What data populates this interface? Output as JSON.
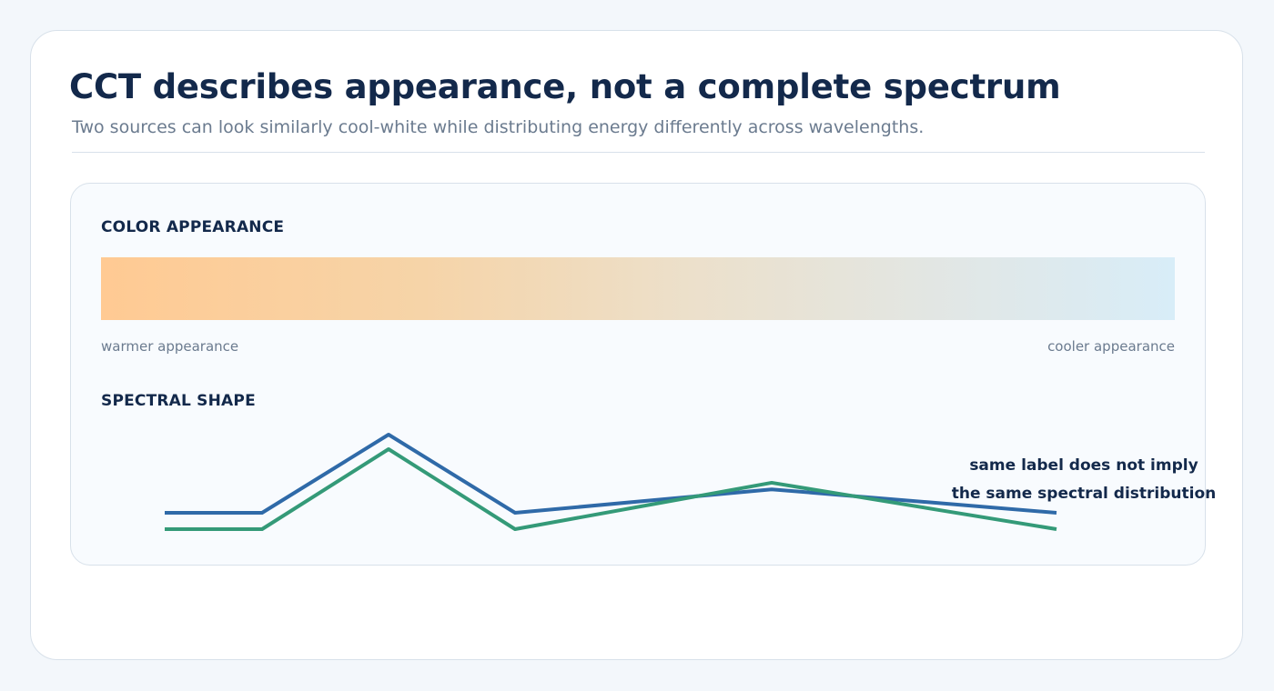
{
  "header": {
    "title": "CCT describes appearance, not a complete spectrum",
    "subtitle": "Two sources can look similarly cool-white while distributing energy differently across wavelengths."
  },
  "appearance": {
    "label": "COLOR APPEARANCE",
    "left_label": "warmer appearance",
    "right_label": "cooler appearance",
    "gradient_colors": [
      "#ffca93",
      "#f6d4a8",
      "#ece0cb",
      "#e1e7e6",
      "#d8edf8"
    ]
  },
  "spectrum": {
    "label": "SPECTRAL SHAPE",
    "annotation_line1": "same label does not imply",
    "annotation_line2": "the same spectral distribution",
    "series": [
      {
        "key": "blue",
        "color": "#2f6aa8",
        "values": [
          0.0,
          0.0,
          1.0,
          0.0,
          0.3,
          0.0
        ]
      },
      {
        "key": "green",
        "color": "#349a78",
        "values": [
          0.0,
          0.0,
          1.0,
          0.0,
          0.58,
          0.0
        ]
      }
    ]
  },
  "colors": {
    "title": "#13294b",
    "muted": "#6b7b8f",
    "border": "#d8e1ea"
  }
}
